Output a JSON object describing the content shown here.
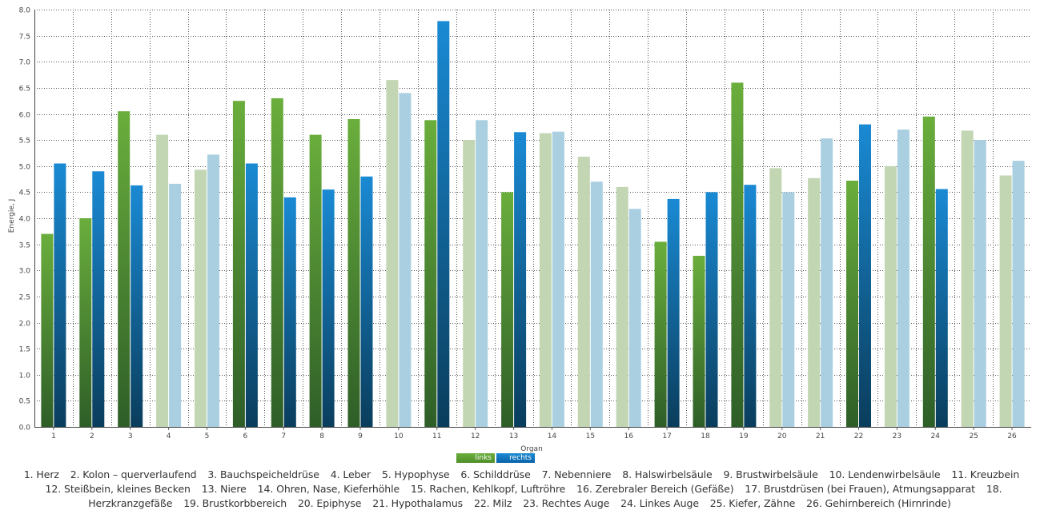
{
  "chart_data": {
    "type": "bar",
    "title": "",
    "xlabel": "Organ",
    "ylabel": "Energie, J",
    "ylim": [
      0,
      8.0
    ],
    "yticks": [
      "0.0",
      "0.5",
      "1.0",
      "1.5",
      "2.0",
      "2.5",
      "3.0",
      "3.5",
      "4.0",
      "4.5",
      "5.0",
      "5.5",
      "6.0",
      "6.5",
      "7.0",
      "7.5",
      "8.0"
    ],
    "categories": [
      "1",
      "2",
      "3",
      "4",
      "5",
      "6",
      "7",
      "8",
      "9",
      "10",
      "11",
      "12",
      "13",
      "14",
      "15",
      "16",
      "17",
      "18",
      "19",
      "20",
      "21",
      "22",
      "23",
      "24",
      "25",
      "26"
    ],
    "series": [
      {
        "name": "links",
        "values": [
          3.7,
          4.0,
          6.05,
          5.6,
          4.93,
          6.25,
          6.3,
          5.6,
          5.9,
          6.65,
          5.88,
          5.5,
          4.5,
          5.63,
          5.18,
          4.6,
          3.55,
          3.28,
          6.6,
          4.96,
          4.77,
          4.72,
          5.0,
          5.95,
          5.68,
          4.82
        ],
        "muted": [
          false,
          false,
          false,
          true,
          true,
          false,
          false,
          false,
          false,
          true,
          false,
          true,
          false,
          true,
          true,
          true,
          false,
          false,
          false,
          true,
          true,
          false,
          true,
          false,
          true,
          true
        ]
      },
      {
        "name": "rechts",
        "values": [
          5.05,
          4.9,
          4.63,
          4.66,
          5.22,
          5.05,
          4.4,
          4.55,
          4.8,
          6.4,
          7.78,
          5.88,
          5.65,
          5.66,
          4.7,
          4.18,
          4.37,
          4.5,
          4.64,
          4.5,
          5.53,
          5.8,
          5.7,
          4.56,
          5.5,
          5.1
        ],
        "muted": [
          false,
          false,
          false,
          true,
          true,
          false,
          false,
          false,
          false,
          true,
          false,
          true,
          false,
          true,
          true,
          true,
          false,
          false,
          false,
          true,
          true,
          false,
          true,
          false,
          true,
          true
        ]
      }
    ],
    "grid": true,
    "legend_position": "bottom-center",
    "colors": {
      "links_top": "#6aae3c",
      "links_bottom": "#2e5e28",
      "rechts_top": "#1a8ad4",
      "rechts_bottom": "#0a3d5c",
      "links_muted": "#c2d6b4",
      "rechts_muted": "#a9cfe1"
    }
  },
  "legend": {
    "links": "links",
    "rechts": "rechts"
  },
  "organs": [
    "1. Herz",
    "2. Kolon – querverlaufend",
    "3. Bauchspeicheldrüse",
    "4. Leber",
    "5. Hypophyse",
    "6. Schilddrüse",
    "7. Nebenniere",
    "8. Halswirbelsäule",
    "9. Brustwirbelsäule",
    "10. Lendenwirbelsäule",
    "11. Kreuzbein",
    "12. Steißbein, kleines Becken",
    "13. Niere",
    "14. Ohren, Nase, Kieferhöhle",
    "15. Rachen, Kehlkopf, Luftröhre",
    "16. Zerebraler Bereich (Gefäße)",
    "17. Brustdrüsen (bei Frauen), Atmungsapparat",
    "18. Herzkranzgefäße",
    "19. Brustkorbbereich",
    "20. Epiphyse",
    "21. Hypothalamus",
    "22. Milz",
    "23. Rechtes Auge",
    "24. Linkes Auge",
    "25. Kiefer, Zähne",
    "26. Gehirnbereich (Hirnrinde)"
  ]
}
